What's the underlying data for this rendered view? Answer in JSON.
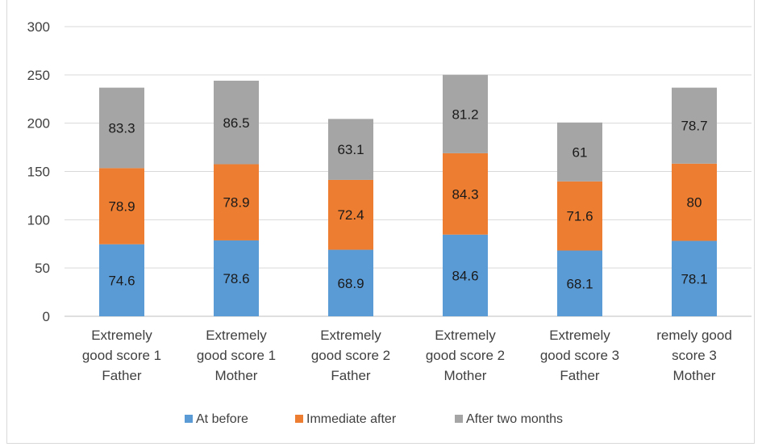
{
  "chart_data": {
    "type": "bar",
    "stacked": true,
    "categories": [
      [
        "Extremely",
        "good score 1",
        "Father"
      ],
      [
        "Extremely",
        "good score 1",
        "Mother"
      ],
      [
        "Extremely",
        "good score 2",
        "Father"
      ],
      [
        "Extremely",
        "good score 2",
        "Mother"
      ],
      [
        "Extremely",
        "good score 3",
        "Father"
      ],
      [
        "remely good",
        "score 3",
        "Mother"
      ]
    ],
    "series": [
      {
        "name": "At before",
        "color": "#5b9bd5",
        "values": [
          74.6,
          78.6,
          68.9,
          84.6,
          68.1,
          78.1
        ]
      },
      {
        "name": "Immediate after",
        "color": "#ed7d31",
        "values": [
          78.9,
          78.9,
          72.4,
          84.3,
          71.6,
          80
        ]
      },
      {
        "name": "After two months",
        "color": "#a5a5a5",
        "values": [
          83.3,
          86.5,
          63.1,
          81.2,
          61,
          78.7
        ]
      }
    ],
    "ylim": [
      0,
      300
    ],
    "yticks": [
      0,
      50,
      100,
      150,
      200,
      250,
      300
    ],
    "grid": true,
    "legend": "bottom"
  }
}
